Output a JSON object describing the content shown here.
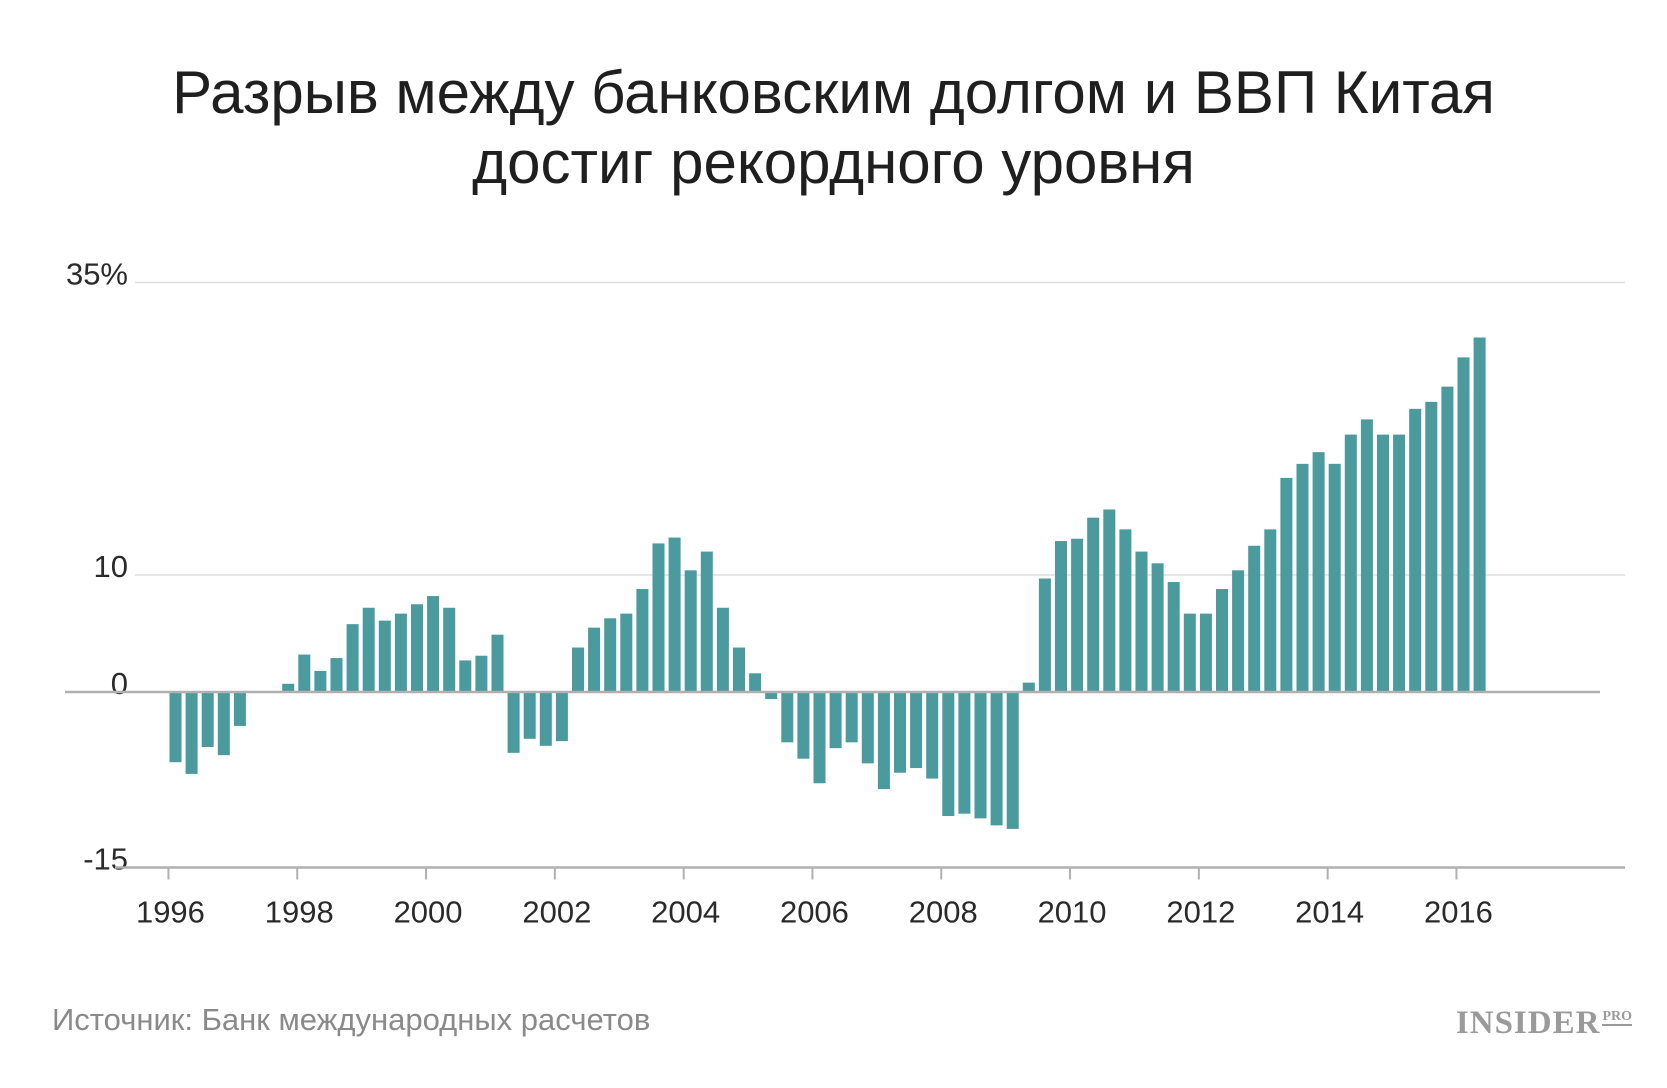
{
  "title_line1": "Разрыв между банковским долгом и ВВП Китая",
  "title_line2": "достиг рекордного уровня",
  "source": "Источник: Банк международных расчетов",
  "logo": "INSIDER",
  "logo_suffix": "PRO",
  "colors": {
    "bar": "#4a9a9e",
    "grid": "#dddddd",
    "axis": "#b0b0b0",
    "text": "#2a2a2a"
  },
  "chart_data": {
    "type": "bar",
    "title": "Разрыв между банковским долгом и ВВП Китая достиг рекордного уровня",
    "xlabel": "",
    "ylabel": "",
    "ylim": [
      -15,
      35
    ],
    "y_ticks": [
      {
        "value": 35,
        "label": "35%"
      },
      {
        "value": 10,
        "label": "10"
      },
      {
        "value": 0,
        "label": "0"
      },
      {
        "value": -15,
        "label": "-15"
      }
    ],
    "x_ticks": [
      {
        "value": 1996,
        "label": "1996"
      },
      {
        "value": 1998,
        "label": "1998"
      },
      {
        "value": 2000,
        "label": "2000"
      },
      {
        "value": 2002,
        "label": "2002"
      },
      {
        "value": 2004,
        "label": "2004"
      },
      {
        "value": 2006,
        "label": "2006"
      },
      {
        "value": 2008,
        "label": "2008"
      },
      {
        "value": 2010,
        "label": "2010"
      },
      {
        "value": 2012,
        "label": "2012"
      },
      {
        "value": 2014,
        "label": "2014"
      },
      {
        "value": 2016,
        "label": "2016"
      }
    ],
    "grid": true,
    "frequency": "quarterly",
    "first_quarter": "1996 Q1",
    "values": [
      -6.0,
      -7.0,
      -4.7,
      -5.4,
      -2.9,
      null,
      null,
      0.7,
      3.2,
      1.8,
      2.9,
      5.8,
      7.2,
      6.1,
      6.7,
      7.5,
      8.2,
      7.2,
      2.7,
      3.1,
      4.9,
      -5.2,
      -4.0,
      -4.6,
      -4.2,
      3.8,
      5.5,
      6.3,
      6.7,
      8.8,
      12.7,
      13.2,
      10.4,
      12.0,
      7.2,
      3.8,
      1.6,
      -0.6,
      -4.3,
      -5.7,
      -7.8,
      -4.8,
      -4.3,
      -6.1,
      -8.3,
      -6.9,
      -6.5,
      -7.4,
      -10.6,
      -10.4,
      -10.8,
      -11.4,
      -11.7,
      0.8,
      9.7,
      12.9,
      13.1,
      14.9,
      15.6,
      13.9,
      12.0,
      11.0,
      9.4,
      6.7,
      6.7,
      8.8,
      10.4,
      12.5,
      13.9,
      18.3,
      19.5,
      20.5,
      19.5,
      22.0,
      23.3,
      22.0,
      22.0,
      24.2,
      24.8,
      26.1,
      28.6,
      30.3
    ]
  }
}
